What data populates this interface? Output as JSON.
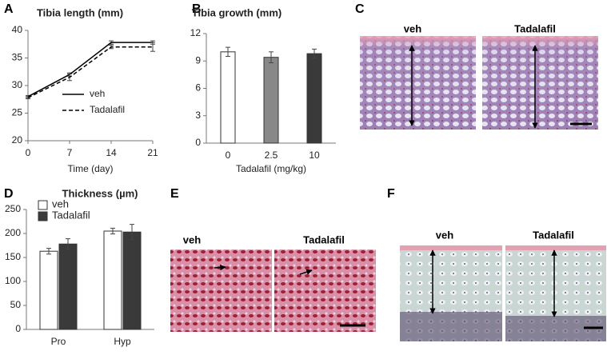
{
  "chart_data": [
    {
      "type": "line",
      "panel": "A",
      "title": "Tibia length (mm)",
      "xlabel": "Time (day)",
      "x": [
        0,
        7,
        14,
        21
      ],
      "xlim": [
        0,
        21
      ],
      "xticks": [
        0,
        7,
        14,
        21
      ],
      "ylim": [
        20,
        40
      ],
      "yticks": [
        20,
        25,
        30,
        35,
        40
      ],
      "series": [
        {
          "name": "veh",
          "color": "#000000",
          "dash": false,
          "values": [
            28,
            32,
            37.8,
            37.8
          ],
          "errors": [
            0.2,
            0.3,
            0.3,
            0.3
          ]
        },
        {
          "name": "Tadalafil",
          "color": "#000000",
          "dash": true,
          "values": [
            27.8,
            31.5,
            37,
            37
          ],
          "errors": [
            0.2,
            0.6,
            0.3,
            0.8
          ]
        }
      ]
    },
    {
      "type": "bar",
      "panel": "B",
      "title": "Tibia growth (mm)",
      "xlabel": "Tadalafil (mg/kg)",
      "categories": [
        "0",
        "2.5",
        "10"
      ],
      "values": [
        10,
        9.4,
        9.8
      ],
      "errors": [
        0.5,
        0.6,
        0.5
      ],
      "colors": [
        "#ffffff",
        "#888888",
        "#3a3a3a"
      ],
      "ylim": [
        0,
        12
      ],
      "yticks": [
        0,
        3,
        6,
        9,
        12
      ]
    },
    {
      "type": "bar",
      "panel": "D",
      "title": "Thickness (µm)",
      "categories": [
        "Pro",
        "Hyp"
      ],
      "series": [
        {
          "name": "veh",
          "color": "#ffffff",
          "values": [
            163,
            205
          ],
          "errors": [
            6,
            6
          ]
        },
        {
          "name": "Tadalafil",
          "color": "#3a3a3a",
          "values": [
            178,
            203
          ],
          "errors": [
            11,
            16
          ]
        }
      ],
      "ylim": [
        0,
        250
      ],
      "yticks": [
        0,
        50,
        100,
        150,
        200,
        250
      ]
    }
  ],
  "images": [
    {
      "panel": "C",
      "labels": [
        "veh",
        "Tadalafil"
      ]
    },
    {
      "panel": "E",
      "labels": [
        "veh",
        "Tadalafil"
      ]
    },
    {
      "panel": "F",
      "labels": [
        "veh",
        "Tadalafil"
      ]
    }
  ]
}
